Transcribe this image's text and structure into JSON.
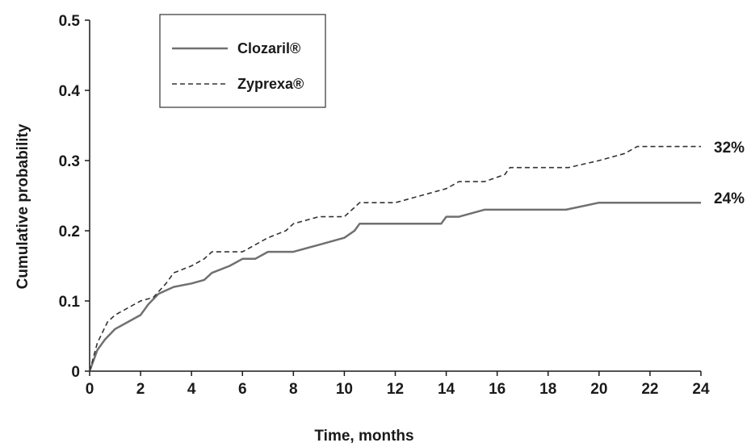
{
  "chart_data": {
    "type": "line",
    "title": "",
    "xlabel": "Time, months",
    "ylabel": "Cumulative probability",
    "xlim": [
      0,
      24
    ],
    "ylim": [
      0,
      0.5
    ],
    "x_ticks": [
      "0",
      "2",
      "4",
      "6",
      "8",
      "10",
      "12",
      "14",
      "16",
      "18",
      "20",
      "22",
      "24"
    ],
    "y_ticks": [
      "0",
      "0.1",
      "0.2",
      "0.3",
      "0.4",
      "0.5"
    ],
    "grid": false,
    "legend_position": "top-left",
    "series": [
      {
        "name": "Clozaril®",
        "style": "solid",
        "color": "#707070",
        "end_label": "24%",
        "points": [
          [
            0,
            0
          ],
          [
            0.3,
            0.03
          ],
          [
            0.6,
            0.045
          ],
          [
            1,
            0.06
          ],
          [
            1.5,
            0.07
          ],
          [
            2,
            0.08
          ],
          [
            2.3,
            0.095
          ],
          [
            2.7,
            0.11
          ],
          [
            3,
            0.115
          ],
          [
            3.3,
            0.12
          ],
          [
            4,
            0.125
          ],
          [
            4.5,
            0.13
          ],
          [
            4.8,
            0.14
          ],
          [
            5.5,
            0.15
          ],
          [
            6,
            0.16
          ],
          [
            6.5,
            0.16
          ],
          [
            7,
            0.17
          ],
          [
            8,
            0.17
          ],
          [
            9,
            0.18
          ],
          [
            10,
            0.19
          ],
          [
            10.4,
            0.2
          ],
          [
            10.6,
            0.21
          ],
          [
            11,
            0.21
          ],
          [
            12,
            0.21
          ],
          [
            13,
            0.21
          ],
          [
            13.8,
            0.21
          ],
          [
            14,
            0.22
          ],
          [
            14.5,
            0.22
          ],
          [
            15.5,
            0.23
          ],
          [
            16,
            0.23
          ],
          [
            18,
            0.23
          ],
          [
            18.7,
            0.23
          ],
          [
            20,
            0.24
          ],
          [
            22,
            0.24
          ],
          [
            24,
            0.24
          ]
        ]
      },
      {
        "name": "Zyprexa®",
        "style": "dashed",
        "color": "#333333",
        "end_label": "32%",
        "points": [
          [
            0,
            0
          ],
          [
            0.3,
            0.04
          ],
          [
            0.7,
            0.07
          ],
          [
            1,
            0.08
          ],
          [
            1.5,
            0.09
          ],
          [
            2,
            0.1
          ],
          [
            2.5,
            0.105
          ],
          [
            3,
            0.125
          ],
          [
            3.3,
            0.14
          ],
          [
            4,
            0.15
          ],
          [
            4.5,
            0.16
          ],
          [
            4.8,
            0.17
          ],
          [
            5,
            0.17
          ],
          [
            6,
            0.17
          ],
          [
            6.5,
            0.18
          ],
          [
            7,
            0.19
          ],
          [
            7.7,
            0.2
          ],
          [
            8,
            0.21
          ],
          [
            9,
            0.22
          ],
          [
            10,
            0.22
          ],
          [
            10.3,
            0.23
          ],
          [
            10.6,
            0.24
          ],
          [
            12,
            0.24
          ],
          [
            13,
            0.25
          ],
          [
            14,
            0.26
          ],
          [
            14.5,
            0.27
          ],
          [
            15.5,
            0.27
          ],
          [
            16.3,
            0.28
          ],
          [
            16.5,
            0.29
          ],
          [
            18,
            0.29
          ],
          [
            18.8,
            0.29
          ],
          [
            20,
            0.3
          ],
          [
            21,
            0.31
          ],
          [
            21.5,
            0.32
          ],
          [
            22,
            0.32
          ],
          [
            24,
            0.32
          ]
        ]
      }
    ]
  }
}
